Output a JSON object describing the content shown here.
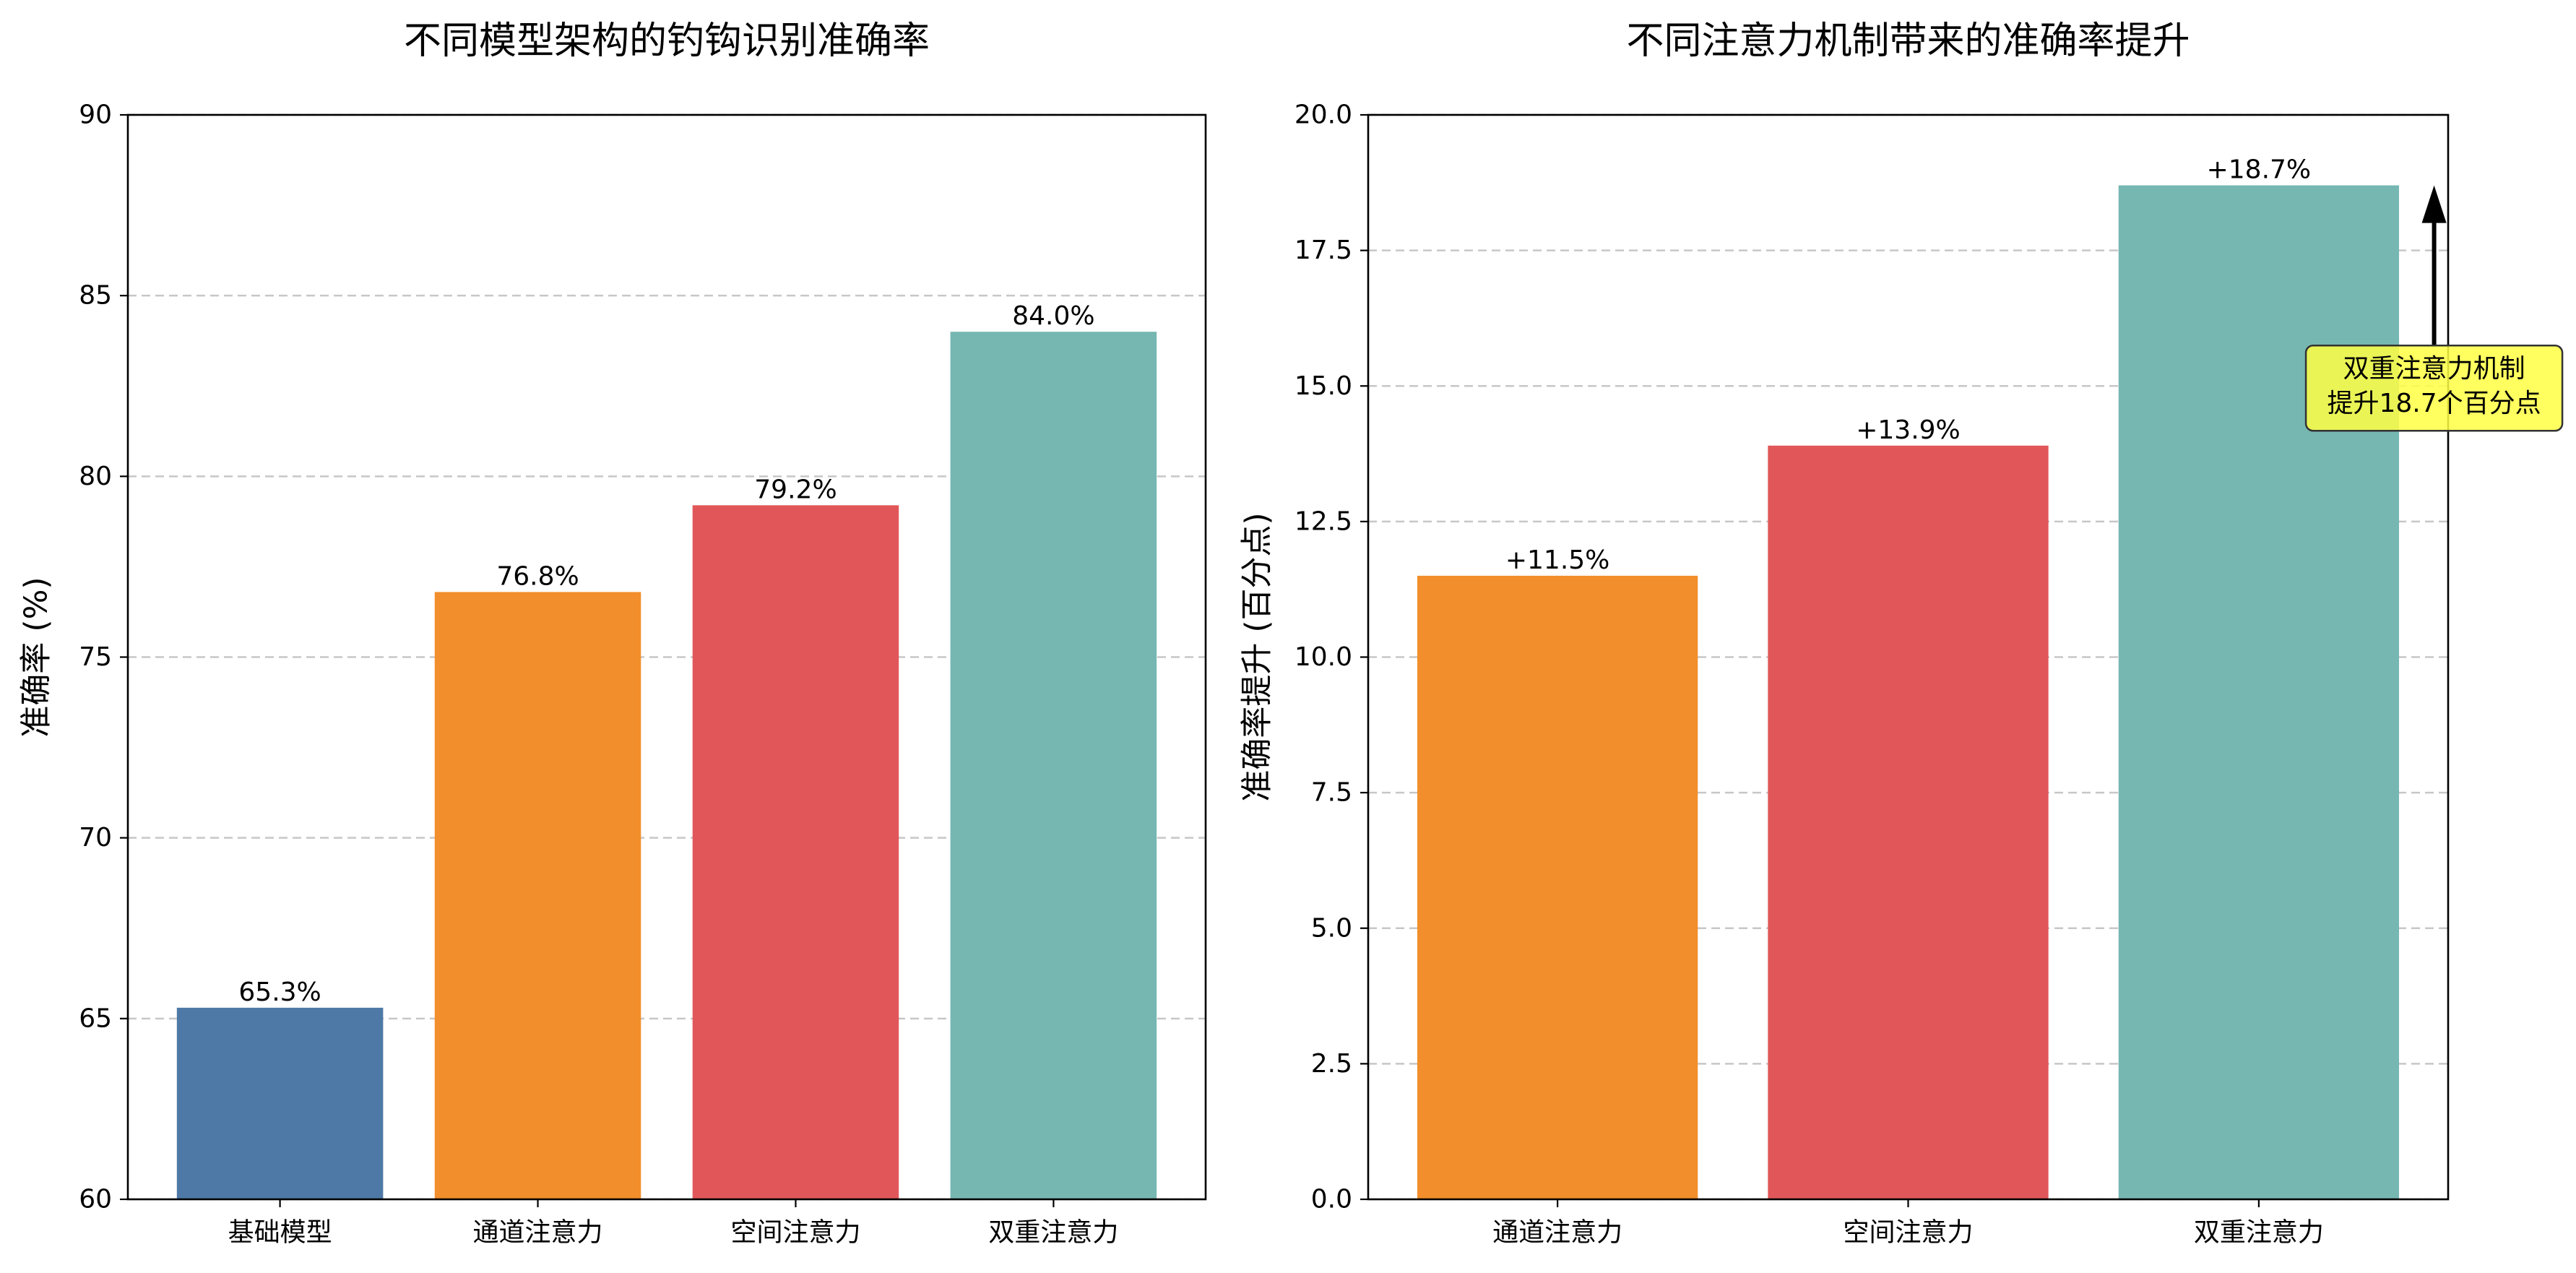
{
  "chart_data": [
    {
      "type": "bar",
      "title": "不同模型架构的钓钩识别准确率",
      "ylabel": "准确率 (%)",
      "categories": [
        "基础模型",
        "通道注意力",
        "空间注意力",
        "双重注意力"
      ],
      "values": [
        65.3,
        76.8,
        79.2,
        84.0
      ],
      "value_labels": [
        "65.3%",
        "76.8%",
        "79.2%",
        "84.0%"
      ],
      "colors": [
        "#4e79a7",
        "#f28e2b",
        "#e15759",
        "#76b7b2"
      ],
      "ylim": [
        60,
        90
      ],
      "yticks": [
        60,
        65,
        70,
        75,
        80,
        85,
        90
      ],
      "ytick_labels": [
        "60",
        "65",
        "70",
        "75",
        "80",
        "85",
        "90"
      ],
      "grid": true
    },
    {
      "type": "bar",
      "title": "不同注意力机制带来的准确率提升",
      "ylabel": "准确率提升 (百分点)",
      "categories": [
        "通道注意力",
        "空间注意力",
        "双重注意力"
      ],
      "values": [
        11.5,
        13.9,
        18.7
      ],
      "value_labels": [
        "+11.5%",
        "+13.9%",
        "+18.7%"
      ],
      "colors": [
        "#f28e2b",
        "#e15759",
        "#76b7b2"
      ],
      "ylim": [
        0,
        20
      ],
      "yticks": [
        0,
        2.5,
        5,
        7.5,
        10,
        12.5,
        15,
        17.5,
        20
      ],
      "ytick_labels": [
        "0.0",
        "2.5",
        "5.0",
        "7.5",
        "10.0",
        "12.5",
        "15.0",
        "17.5",
        "20.0"
      ],
      "grid": true,
      "annotation": {
        "lines": [
          "双重注意力机制",
          "提升18.7个百分点"
        ],
        "box_color": "#ffff44",
        "points_to": "双重注意力"
      }
    }
  ]
}
